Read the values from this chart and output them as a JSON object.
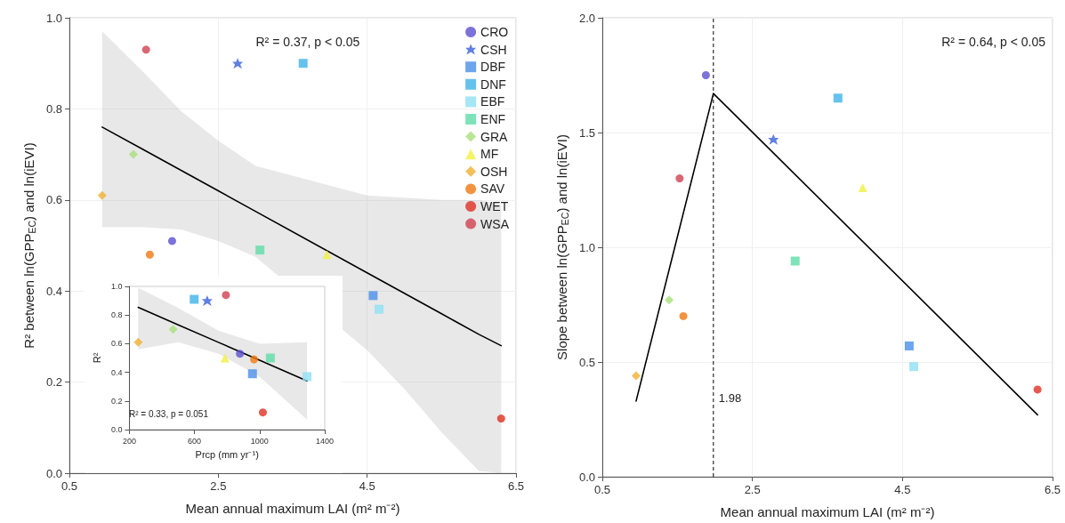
{
  "chart_data": [
    {
      "type": "scatter",
      "xlabel": "Mean annual maximum LAI (m² m⁻²)",
      "ylabel": "R² between ln(GPP$_{EC}$) and ln(iEVI)",
      "xlim": [
        0.5,
        6.5
      ],
      "xticks": [
        0.5,
        2.5,
        4.5,
        6.5
      ],
      "ylim": [
        0,
        1
      ],
      "yticks": [
        {
          "value": 0,
          "label": "0.0"
        },
        0.2,
        0.4,
        0.6,
        0.8,
        {
          "value": 1,
          "label": "1.0"
        }
      ],
      "grid": true,
      "legend": "top right",
      "annotations": [
        "R² = 0.37, p < 0.05"
      ],
      "series": [
        {
          "name": "CRO",
          "color": "#5b4fcf",
          "marker": "circle",
          "x": [
            1.88
          ],
          "values": [
            0.51
          ]
        },
        {
          "name": "CSH",
          "color": "#3a5fd9",
          "marker": "star",
          "x": [
            2.76
          ],
          "values": [
            0.9
          ]
        },
        {
          "name": "DBF",
          "color": "#4a8fe8",
          "marker": "square",
          "x": [
            4.58
          ],
          "values": [
            0.39
          ]
        },
        {
          "name": "DNF",
          "color": "#3fb3e8",
          "marker": "square",
          "x": [
            3.64
          ],
          "values": [
            0.9
          ]
        },
        {
          "name": "EBF",
          "color": "#8fe0f5",
          "marker": "square",
          "x": [
            4.66
          ],
          "values": [
            0.36
          ]
        },
        {
          "name": "ENF",
          "color": "#5fdca8",
          "marker": "square",
          "x": [
            3.06
          ],
          "values": [
            0.49
          ]
        },
        {
          "name": "GRA",
          "color": "#a8e07a",
          "marker": "diamond",
          "x": [
            1.36
          ],
          "values": [
            0.7
          ]
        },
        {
          "name": "MF",
          "color": "#f0f040",
          "marker": "triangle",
          "x": [
            3.96
          ],
          "values": [
            0.48
          ]
        },
        {
          "name": "OSH",
          "color": "#f0b030",
          "marker": "diamond",
          "x": [
            0.94
          ],
          "values": [
            0.61
          ]
        },
        {
          "name": "SAV",
          "color": "#f07810",
          "marker": "circle",
          "x": [
            1.58
          ],
          "values": [
            0.48
          ]
        },
        {
          "name": "WET",
          "color": "#e03020",
          "marker": "circle",
          "x": [
            6.3
          ],
          "values": [
            0.12
          ]
        },
        {
          "name": "WSA",
          "color": "#d04050",
          "marker": "circle",
          "x": [
            1.53
          ],
          "values": [
            0.93
          ]
        },
        {
          "type": "line",
          "color": "#000000",
          "marker": "none",
          "x": [
            0.94,
            1.5,
            2,
            2.5,
            3,
            4.5,
            5,
            5.5,
            6,
            6.3
          ],
          "values": [
            0.76,
            0.71,
            0.665,
            0.62,
            0.575,
            0.44,
            0.395,
            0.35,
            0.305,
            0.28
          ],
          "lower": [
            0.54,
            0.54,
            0.535,
            0.51,
            0.475,
            0.27,
            0.185,
            0.09,
            0.005,
            0
          ],
          "upper": [
            0.97,
            0.88,
            0.795,
            0.73,
            0.675,
            0.61,
            0.605,
            0.6,
            0.6,
            0.59
          ]
        }
      ]
    },
    {
      "type": "scatter",
      "xlabel": "Prcp (mm yr⁻¹)",
      "ylabel": "R²",
      "xlim": [
        200,
        1400
      ],
      "xticks": [
        200,
        600,
        1000,
        1400
      ],
      "ylim": [
        0,
        1
      ],
      "yticks": [
        {
          "value": 0,
          "label": "0.0"
        },
        0.2,
        0.4,
        0.6,
        0.8,
        {
          "value": 1,
          "label": "1.0"
        }
      ],
      "annotations": [
        "R² = 0.33, p = 0.051"
      ],
      "series": [
        {
          "color": "#5b4fcf",
          "marker": "circle",
          "x": [
            879
          ],
          "values": [
            0.53
          ]
        },
        {
          "color": "#3a5fd9",
          "marker": "star",
          "x": [
            678
          ],
          "values": [
            0.9
          ]
        },
        {
          "color": "#4a8fe8",
          "marker": "square",
          "x": [
            956
          ],
          "values": [
            0.39
          ]
        },
        {
          "color": "#3fb3e8",
          "marker": "square",
          "x": [
            598
          ],
          "values": [
            0.91
          ]
        },
        {
          "color": "#8fe0f5",
          "marker": "square",
          "x": [
            1291
          ],
          "values": [
            0.37
          ]
        },
        {
          "color": "#5fdca8",
          "marker": "square",
          "x": [
            1066
          ],
          "values": [
            0.5
          ]
        },
        {
          "color": "#a8e07a",
          "marker": "diamond",
          "x": [
            469
          ],
          "values": [
            0.7
          ]
        },
        {
          "color": "#f0f040",
          "marker": "triangle",
          "x": [
            787
          ],
          "values": [
            0.5
          ]
        },
        {
          "color": "#f0b030",
          "marker": "diamond",
          "x": [
            254
          ],
          "values": [
            0.61
          ]
        },
        {
          "color": "#f07810",
          "marker": "circle",
          "x": [
            966
          ],
          "values": [
            0.49
          ]
        },
        {
          "color": "#e03020",
          "marker": "circle",
          "x": [
            1020
          ],
          "values": [
            0.12
          ]
        },
        {
          "color": "#d04050",
          "marker": "circle",
          "x": [
            793
          ],
          "values": [
            0.94
          ]
        },
        {
          "type": "line",
          "color": "#000000",
          "marker": "none",
          "x": [
            254,
            500,
            750,
            1000,
            1291
          ],
          "values": [
            0.854,
            0.732,
            0.608,
            0.484,
            0.34
          ],
          "lower": [
            0.56,
            0.61,
            0.53,
            0.37,
            0.07
          ],
          "upper": [
            0.99,
            0.85,
            0.69,
            0.6,
            0.61
          ]
        }
      ]
    },
    {
      "type": "scatter",
      "xlabel": "Mean annual maximum LAI (m² m⁻²)",
      "ylabel": "Slope between ln(GPP$_{EC}$) and ln(iEVI)",
      "xlim": [
        0.5,
        6.5
      ],
      "xticks": [
        0.5,
        2.5,
        4.5,
        6.5
      ],
      "ylim": [
        0,
        2
      ],
      "yticks": [
        {
          "value": 0,
          "label": "0.0"
        },
        0.5,
        {
          "value": 1,
          "label": "1.0"
        },
        1.5,
        {
          "value": 2,
          "label": "2.0"
        }
      ],
      "grid": true,
      "annotations": [
        "R² = 0.64, p < 0.05"
      ],
      "ref_lines": [
        {
          "axis": "x",
          "value": 1.98,
          "label": "1.98",
          "line_style": "dashed",
          "color": "#000000"
        }
      ],
      "series": [
        {
          "color": "#5b4fcf",
          "marker": "circle",
          "x": [
            1.88
          ],
          "values": [
            1.75
          ]
        },
        {
          "color": "#3a5fd9",
          "marker": "star",
          "x": [
            2.78
          ],
          "values": [
            1.47
          ]
        },
        {
          "color": "#4a8fe8",
          "marker": "square",
          "x": [
            4.59
          ],
          "values": [
            0.57
          ]
        },
        {
          "color": "#3fb3e8",
          "marker": "square",
          "x": [
            3.64
          ],
          "values": [
            1.65
          ]
        },
        {
          "color": "#8fe0f5",
          "marker": "square",
          "x": [
            4.65
          ],
          "values": [
            0.48
          ]
        },
        {
          "color": "#5fdca8",
          "marker": "square",
          "x": [
            3.07
          ],
          "values": [
            0.94
          ]
        },
        {
          "color": "#a8e07a",
          "marker": "diamond",
          "x": [
            1.39
          ],
          "values": [
            0.77
          ]
        },
        {
          "color": "#f0f040",
          "marker": "triangle",
          "x": [
            3.97
          ],
          "values": [
            1.26
          ]
        },
        {
          "color": "#f0b030",
          "marker": "diamond",
          "x": [
            0.95
          ],
          "values": [
            0.44
          ]
        },
        {
          "color": "#f07810",
          "marker": "circle",
          "x": [
            1.58
          ],
          "values": [
            0.7
          ]
        },
        {
          "color": "#e03020",
          "marker": "circle",
          "x": [
            6.3
          ],
          "values": [
            0.38
          ]
        },
        {
          "color": "#d04050",
          "marker": "circle",
          "x": [
            1.53
          ],
          "values": [
            1.3
          ]
        },
        {
          "type": "line",
          "color": "#000000",
          "marker": "none",
          "x": [
            0.95,
            1.98,
            6.3
          ],
          "values": [
            0.33,
            1.67,
            0.27
          ]
        }
      ]
    }
  ]
}
